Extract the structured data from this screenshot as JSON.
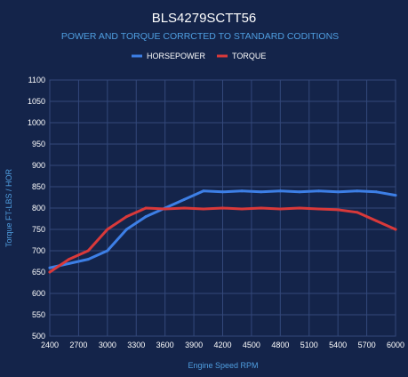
{
  "chart_data": {
    "type": "line",
    "title": "BLS4279SCTT56",
    "subtitle": "POWER AND TORQUE CORRCTED TO STANDARD CODITIONS",
    "xlabel": "Engine Speed RPM",
    "ylabel": "Torque FT-LBS / HOR",
    "xlim": [
      2400,
      6000
    ],
    "ylim": [
      500,
      1100
    ],
    "xticks": [
      2400,
      2700,
      3000,
      3300,
      3600,
      3900,
      4200,
      4500,
      4800,
      5100,
      5400,
      5700,
      6000
    ],
    "yticks": [
      500,
      550,
      600,
      650,
      700,
      750,
      800,
      850,
      900,
      950,
      1000,
      1050,
      1100
    ],
    "grid": true,
    "legend_position": "top-center",
    "series": [
      {
        "name": "HORSEPOWER",
        "color": "#3d7fe6",
        "x": [
          2400,
          2600,
          2800,
          3000,
          3200,
          3400,
          3600,
          3800,
          4000,
          4200,
          4400,
          4600,
          4800,
          5000,
          5200,
          5400,
          5600,
          5800,
          6000
        ],
        "y": [
          660,
          670,
          680,
          700,
          750,
          780,
          800,
          820,
          840,
          838,
          840,
          838,
          840,
          838,
          840,
          838,
          840,
          838,
          830
        ]
      },
      {
        "name": "TORQUE",
        "color": "#d9393a",
        "x": [
          2400,
          2600,
          2800,
          3000,
          3200,
          3400,
          3600,
          3800,
          4000,
          4200,
          4400,
          4600,
          4800,
          5000,
          5200,
          5400,
          5600,
          5800,
          6000
        ],
        "y": [
          650,
          680,
          700,
          750,
          780,
          800,
          798,
          800,
          798,
          800,
          798,
          800,
          798,
          800,
          798,
          796,
          790,
          770,
          750
        ]
      }
    ]
  }
}
